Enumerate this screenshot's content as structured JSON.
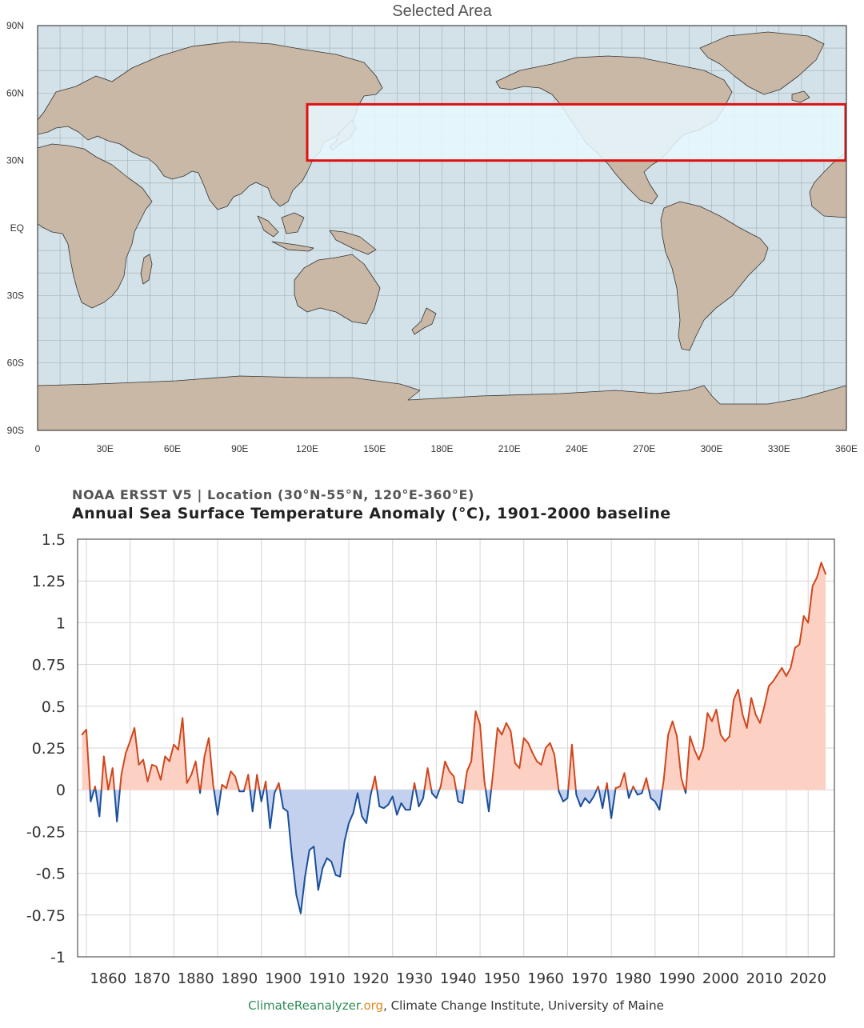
{
  "map": {
    "title": "Selected Area",
    "lat_labels": [
      "90N",
      "60N",
      "30N",
      "EQ",
      "30S",
      "60S",
      "90S"
    ],
    "lon_labels": [
      "0",
      "30E",
      "60E",
      "90E",
      "120E",
      "150E",
      "180E",
      "210E",
      "240E",
      "270E",
      "300E",
      "330E",
      "360E"
    ],
    "selection": {
      "lat_min": 30,
      "lat_max": 55,
      "lon_min": 120,
      "lon_max": 360
    },
    "colors": {
      "ocean": "#d3e2e8",
      "land": "#c9b8a6",
      "coast": "#333333",
      "selection_fill": "#e8f8ff",
      "selection_border": "#e01010"
    }
  },
  "chart": {
    "subtitle": "NOAA ERSST V5 | Location (30°N-55°N, 120°E-360°E)",
    "title": "Annual Sea Surface Temperature Anomaly (°C), 1901-2000 baseline"
  },
  "footer": {
    "brand_main": "ClimateReanalyzer",
    "brand_tld": ".org",
    "rest": ", Climate Change Institute, University of Maine"
  },
  "chart_data": {
    "type": "area",
    "x_start": 1854,
    "x_end": 2025,
    "ylim": [
      -1,
      1.5
    ],
    "yticks": [
      "1.5",
      "1.25",
      "1",
      "0.75",
      "0.5",
      "0.25",
      "0",
      "-0.25",
      "-0.5",
      "-0.75",
      "-1"
    ],
    "xticks": [
      "1860",
      "1870",
      "1880",
      "1890",
      "1900",
      "1910",
      "1920",
      "1930",
      "1940",
      "1950",
      "1960",
      "1970",
      "1980",
      "1990",
      "2000",
      "2010",
      "2020"
    ],
    "colors": {
      "positive_line": "#d0461c",
      "positive_fill": "#fdd0c4",
      "negative_line": "#1a4f9c",
      "negative_fill": "#c4d1ee"
    },
    "values": [
      0.33,
      0.36,
      -0.07,
      0.02,
      -0.16,
      0.2,
      0.0,
      0.13,
      -0.19,
      0.09,
      0.22,
      0.29,
      0.37,
      0.15,
      0.18,
      0.05,
      0.15,
      0.14,
      0.06,
      0.2,
      0.17,
      0.27,
      0.24,
      0.43,
      0.04,
      0.09,
      0.17,
      -0.02,
      0.2,
      0.31,
      0.03,
      -0.15,
      0.03,
      0.01,
      0.11,
      0.08,
      -0.01,
      -0.01,
      0.09,
      -0.13,
      0.09,
      -0.07,
      0.05,
      -0.23,
      -0.02,
      0.04,
      -0.11,
      -0.13,
      -0.4,
      -0.63,
      -0.74,
      -0.52,
      -0.36,
      -0.34,
      -0.6,
      -0.47,
      -0.41,
      -0.43,
      -0.51,
      -0.52,
      -0.31,
      -0.2,
      -0.14,
      -0.02,
      -0.16,
      -0.2,
      -0.03,
      0.08,
      -0.1,
      -0.11,
      -0.09,
      -0.04,
      -0.15,
      -0.08,
      -0.12,
      -0.12,
      0.04,
      -0.1,
      -0.05,
      0.13,
      -0.02,
      -0.05,
      0.02,
      0.17,
      0.11,
      0.08,
      -0.07,
      -0.08,
      0.11,
      0.17,
      0.47,
      0.39,
      0.05,
      -0.13,
      0.11,
      0.37,
      0.33,
      0.4,
      0.35,
      0.16,
      0.13,
      0.31,
      0.28,
      0.22,
      0.17,
      0.15,
      0.25,
      0.28,
      0.21,
      -0.01,
      -0.07,
      -0.05,
      0.27,
      -0.03,
      -0.1,
      -0.05,
      -0.08,
      -0.04,
      0.02,
      -0.11,
      0.04,
      -0.17,
      0.01,
      0.02,
      0.1,
      -0.05,
      0.02,
      -0.03,
      -0.02,
      0.07,
      -0.05,
      -0.07,
      -0.12,
      0.06,
      0.33,
      0.41,
      0.32,
      0.07,
      -0.02,
      0.32,
      0.24,
      0.18,
      0.25,
      0.46,
      0.41,
      0.48,
      0.33,
      0.29,
      0.32,
      0.54,
      0.6,
      0.45,
      0.37,
      0.55,
      0.45,
      0.4,
      0.5,
      0.62,
      0.65,
      0.69,
      0.73,
      0.68,
      0.73,
      0.85,
      0.87,
      1.04,
      1.0,
      1.22,
      1.27,
      1.36,
      1.29
    ]
  }
}
